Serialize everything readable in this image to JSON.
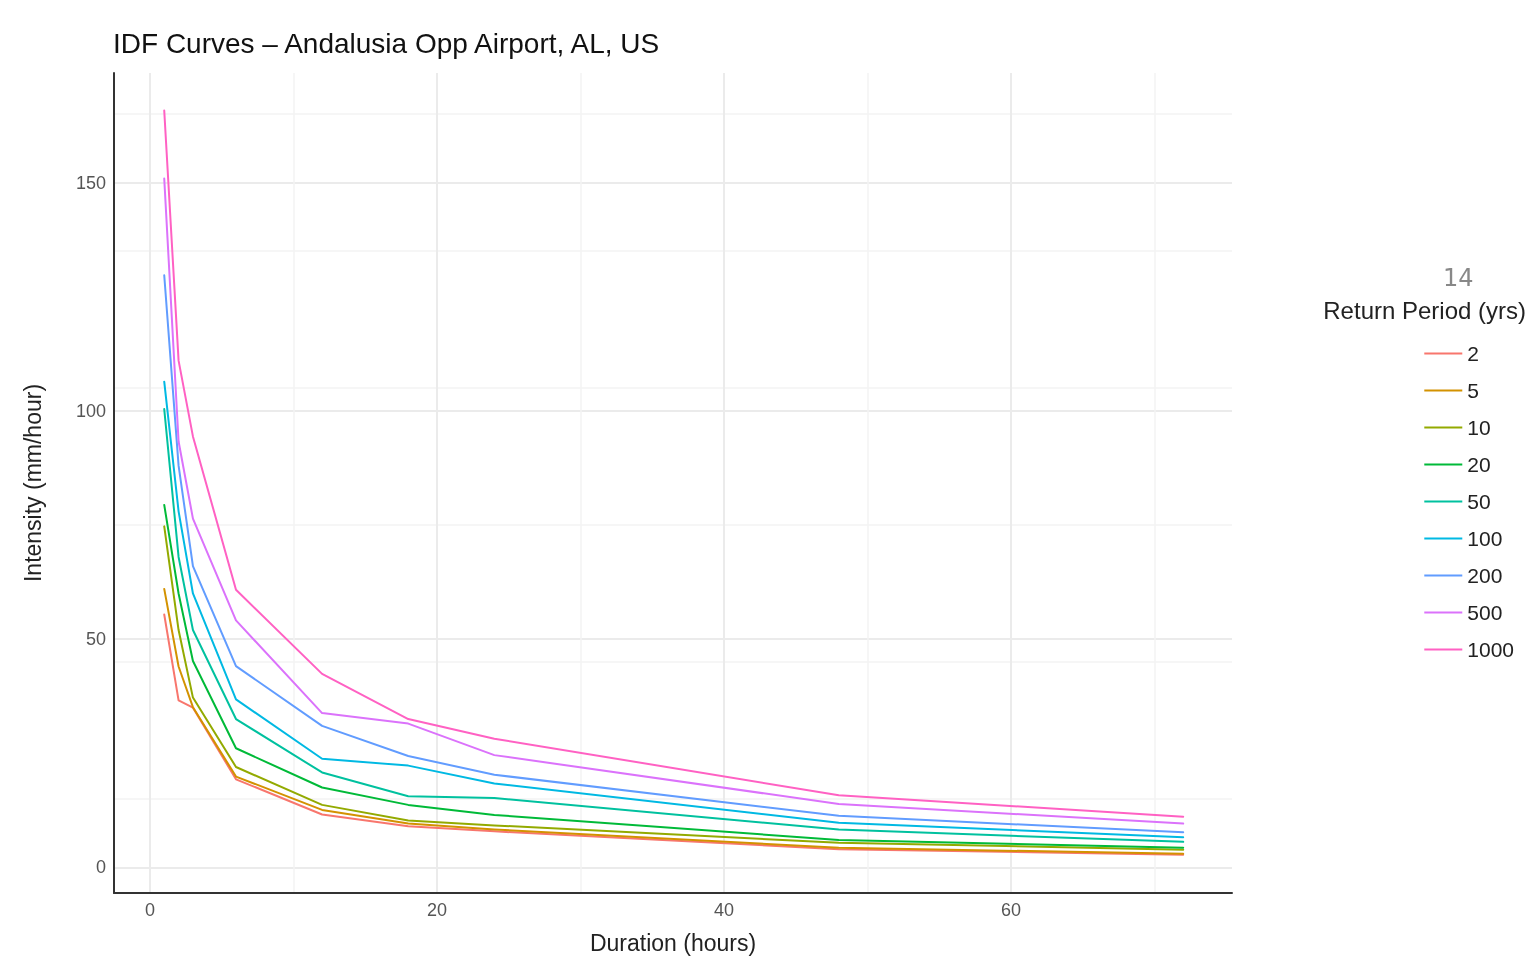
{
  "chart_data": {
    "type": "line",
    "title": "IDF Curves – Andalusia Opp Airport, AL, US",
    "xlabel": "Duration (hours)",
    "ylabel": "Intensity (mm/hour)",
    "legend_title": "Return Period (yrs)",
    "annotations": [
      "14"
    ],
    "x": [
      1,
      2,
      3,
      6,
      12,
      18,
      24,
      48,
      72
    ],
    "xlim": [
      -2.5,
      75.4
    ],
    "xticks": [
      0,
      20,
      40,
      60
    ],
    "ylim": [
      -5.6,
      174
    ],
    "yticks": [
      0,
      50,
      100,
      150
    ],
    "grid": true,
    "legend": "right",
    "marker": "none",
    "line_style": "solid",
    "series": [
      {
        "name": "2",
        "color": "#F8766D",
        "values": [
          55.4,
          36.6,
          35,
          19.3,
          11.6,
          9,
          7.9,
          4,
          2.8
        ]
      },
      {
        "name": "5",
        "color": "#D39200",
        "values": [
          61,
          44,
          35.1,
          19.9,
          12.6,
          9.6,
          8.3,
          4.3,
          3
        ]
      },
      {
        "name": "10",
        "color": "#93AA00",
        "values": [
          74.7,
          52,
          37.2,
          22,
          13.7,
          10.3,
          9.2,
          5.4,
          3.9
        ]
      },
      {
        "name": "20",
        "color": "#00BA38",
        "values": [
          79.4,
          60,
          45.2,
          26.1,
          17.5,
          13.7,
          11.5,
          6,
          4.3
        ]
      },
      {
        "name": "50",
        "color": "#00C19F",
        "values": [
          100.4,
          68,
          52,
          32.5,
          20.8,
          15.6,
          15.2,
          8.3,
          5.6
        ]
      },
      {
        "name": "100",
        "color": "#00B9E3",
        "values": [
          106.4,
          78,
          60,
          36.8,
          23.8,
          22.3,
          18.4,
          9.8,
          6.6
        ]
      },
      {
        "name": "200",
        "color": "#619CFF",
        "values": [
          129.7,
          88,
          66,
          44.1,
          31,
          24.4,
          20.3,
          11.3,
          7.7
        ]
      },
      {
        "name": "500",
        "color": "#DB72FB",
        "values": [
          150.9,
          93.3,
          76.4,
          54.1,
          33.8,
          31.5,
          24.6,
          13.9,
          9.6
        ]
      },
      {
        "name": "1000",
        "color": "#FF61C3",
        "values": [
          165.8,
          111,
          94.4,
          60.8,
          42.4,
          32.5,
          28.2,
          15.8,
          11.1
        ]
      }
    ]
  }
}
